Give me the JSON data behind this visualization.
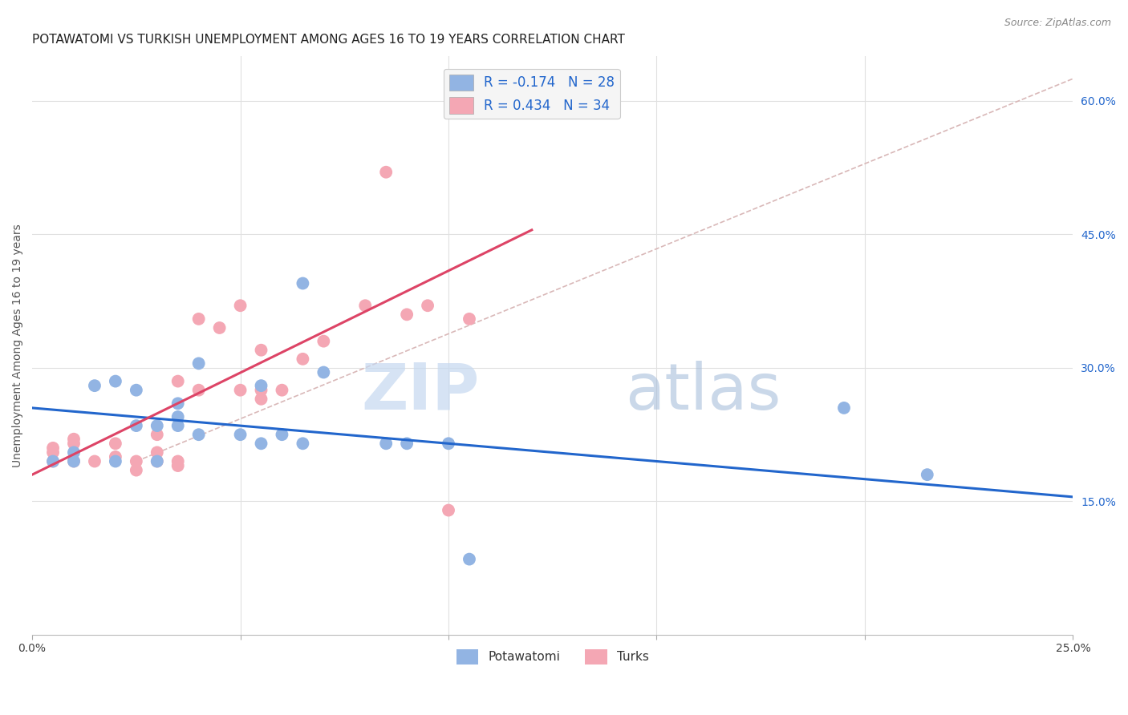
{
  "title": "POTAWATOMI VS TURKISH UNEMPLOYMENT AMONG AGES 16 TO 19 YEARS CORRELATION CHART",
  "source": "Source: ZipAtlas.com",
  "ylabel": "Unemployment Among Ages 16 to 19 years",
  "xlim": [
    0.0,
    0.25
  ],
  "ylim": [
    0.0,
    0.65
  ],
  "yticks_right": [
    0.15,
    0.3,
    0.45,
    0.6
  ],
  "yticklabels_right": [
    "15.0%",
    "30.0%",
    "45.0%",
    "60.0%"
  ],
  "potawatomi_color": "#92b4e3",
  "turks_color": "#f4a7b4",
  "potawatomi_line_color": "#2266cc",
  "turks_line_color": "#dd4466",
  "diagonal_color": "#d9b8b8",
  "R_potawatomi": -0.174,
  "N_potawatomi": 28,
  "R_turks": 0.434,
  "N_turks": 34,
  "potawatomi_x": [
    0.005,
    0.01,
    0.01,
    0.015,
    0.02,
    0.02,
    0.025,
    0.025,
    0.03,
    0.03,
    0.035,
    0.035,
    0.035,
    0.04,
    0.04,
    0.05,
    0.055,
    0.055,
    0.06,
    0.065,
    0.065,
    0.07,
    0.085,
    0.09,
    0.1,
    0.105,
    0.195,
    0.215
  ],
  "potawatomi_y": [
    0.195,
    0.195,
    0.205,
    0.28,
    0.195,
    0.285,
    0.235,
    0.275,
    0.195,
    0.235,
    0.235,
    0.245,
    0.26,
    0.225,
    0.305,
    0.225,
    0.215,
    0.28,
    0.225,
    0.215,
    0.395,
    0.295,
    0.215,
    0.215,
    0.215,
    0.085,
    0.255,
    0.18
  ],
  "turks_x": [
    0.005,
    0.005,
    0.005,
    0.01,
    0.01,
    0.01,
    0.015,
    0.02,
    0.02,
    0.025,
    0.025,
    0.03,
    0.03,
    0.03,
    0.035,
    0.035,
    0.035,
    0.04,
    0.04,
    0.045,
    0.05,
    0.05,
    0.055,
    0.055,
    0.055,
    0.06,
    0.065,
    0.07,
    0.08,
    0.085,
    0.09,
    0.095,
    0.1,
    0.105
  ],
  "turks_y": [
    0.195,
    0.205,
    0.21,
    0.195,
    0.215,
    0.22,
    0.195,
    0.2,
    0.215,
    0.185,
    0.195,
    0.195,
    0.205,
    0.225,
    0.19,
    0.195,
    0.285,
    0.355,
    0.275,
    0.345,
    0.275,
    0.37,
    0.265,
    0.275,
    0.32,
    0.275,
    0.31,
    0.33,
    0.37,
    0.52,
    0.36,
    0.37,
    0.14,
    0.355
  ],
  "pot_line_x": [
    0.0,
    0.25
  ],
  "pot_line_y": [
    0.255,
    0.155
  ],
  "turk_line_x": [
    0.0,
    0.12
  ],
  "turk_line_y": [
    0.18,
    0.455
  ],
  "diag_line_x": [
    0.025,
    0.25
  ],
  "diag_line_y": [
    0.195,
    0.625
  ],
  "background_color": "#ffffff",
  "grid_color": "#e0e0e0",
  "watermark_zip": "ZIP",
  "watermark_atlas": "atlas",
  "title_fontsize": 11,
  "label_fontsize": 10,
  "tick_fontsize": 10
}
